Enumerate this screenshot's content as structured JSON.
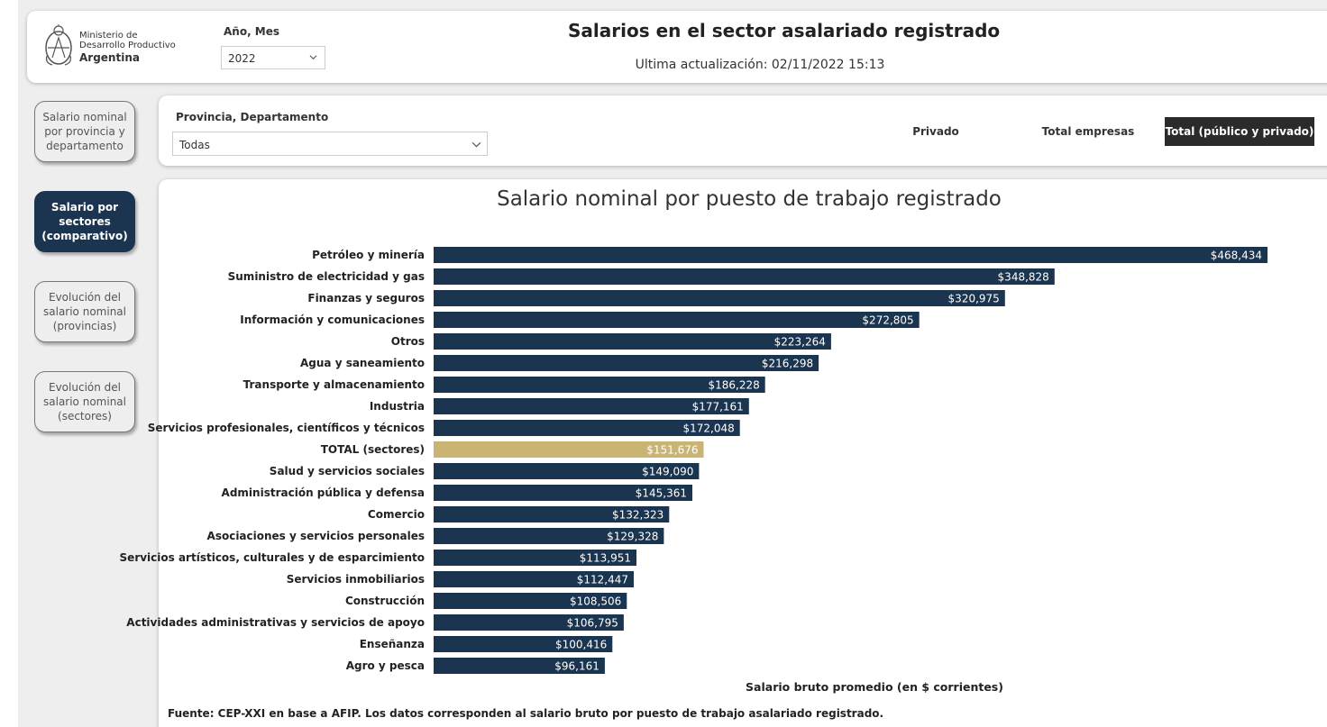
{
  "header": {
    "org_line1": "Ministerio de",
    "org_line2": "Desarrollo Productivo",
    "org_line3": "Argentina",
    "period_label": "Año, Mes",
    "period_value": "2022",
    "title": "Salarios en el sector asalariado registrado",
    "updated": "Ultima actualización: 02/11/2022 15:13"
  },
  "nav": {
    "items": [
      {
        "label": "Salario nominal por provincia y departamento"
      },
      {
        "label": "Salario por sectores (comparativo)"
      },
      {
        "label": "Evolución del salario nominal (provincias)"
      },
      {
        "label": "Evolución del salario nominal (sectores)"
      }
    ]
  },
  "filters": {
    "province_label": "Provincia, Departamento",
    "province_value": "Todas",
    "toggles": [
      "Privado",
      "Total empresas",
      "Total (público y privado)"
    ],
    "active_toggle": "Total (público y privado)"
  },
  "colors": {
    "bar": "#1b3550",
    "highlight": "#c9b473",
    "nav_active": "#1b3550"
  },
  "chart_data": {
    "type": "bar",
    "orientation": "horizontal",
    "title": "Salario nominal por puesto de trabajo registrado",
    "xlabel": "Salario bruto promedio (en $ corrientes)",
    "ylabel": "",
    "xlim": [
      0,
      480000
    ],
    "highlight_category": "TOTAL (sectores)",
    "categories": [
      "Petróleo y minería",
      "Suministro de electricidad y gas",
      "Finanzas y seguros",
      "Información y comunicaciones",
      "Otros",
      "Agua y saneamiento",
      "Transporte y almacenamiento",
      "Industria",
      "Servicios profesionales, científicos y técnicos",
      "TOTAL (sectores)",
      "Salud y servicios sociales",
      "Administración pública y defensa",
      "Comercio",
      "Asociaciones y servicios personales",
      "Servicios artísticos, culturales y de esparcimiento",
      "Servicios inmobiliarios",
      "Construcción",
      "Actividades administrativas y servicios de apoyo",
      "Enseñanza",
      "Agro y pesca"
    ],
    "values": [
      468434,
      348828,
      320975,
      272805,
      223264,
      216298,
      186228,
      177161,
      172048,
      151676,
      149090,
      145361,
      132323,
      129328,
      113951,
      112447,
      108506,
      106795,
      100416,
      96161
    ],
    "value_labels": [
      "$468,434",
      "$348,828",
      "$320,975",
      "$272,805",
      "$223,264",
      "$216,298",
      "$186,228",
      "$177,161",
      "$172,048",
      "$151,676",
      "$149,090",
      "$145,361",
      "$132,323",
      "$129,328",
      "$113,951",
      "$112,447",
      "$108,506",
      "$106,795",
      "$100,416",
      "$96,161"
    ]
  },
  "footer": {
    "source": "Fuente: CEP-XXI en base a AFIP. Los datos corresponden al salario bruto por puesto de trabajo asalariado registrado."
  }
}
